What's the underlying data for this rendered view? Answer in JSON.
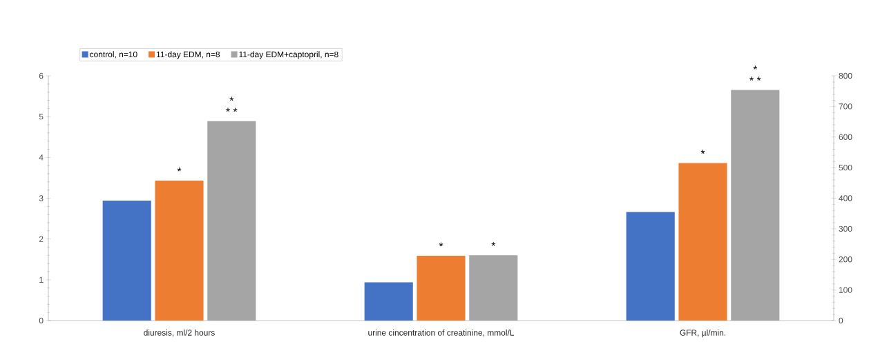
{
  "chart_data": {
    "type": "bar",
    "categories": [
      "diuresis, ml/2 hours",
      "urine cincentration of creatinine, mmol/L",
      "GFR, µl/min."
    ],
    "series": [
      {
        "name": "control, n=10",
        "color": "#4472c4",
        "values": [
          2.94,
          0.94,
          null
        ]
      },
      {
        "name": "11-day EDM, n=8",
        "color": "#ed7d31",
        "values": [
          3.43,
          1.59,
          null
        ]
      },
      {
        "name": "11-day EDM+captopril, n=8",
        "color": "#a5a5a5",
        "values": [
          4.89,
          1.6,
          null
        ]
      },
      {
        "color": "#4472c4",
        "axis": "y2",
        "values": [
          null,
          null,
          355
        ]
      },
      {
        "color": "#ed7d31",
        "axis": "y2",
        "values": [
          null,
          null,
          515
        ]
      },
      {
        "color": "#a5a5a5",
        "axis": "y2",
        "values": [
          null,
          null,
          754
        ]
      }
    ],
    "ylim": [
      0,
      6
    ],
    "yticks": [
      0,
      1,
      2,
      3,
      4,
      5,
      6
    ],
    "y2lim": [
      0,
      800
    ],
    "y2ticks": [
      0,
      100,
      200,
      300,
      400,
      500,
      600,
      700,
      800
    ],
    "grid": false,
    "legend": "top left",
    "annotations": [
      "*",
      "*",
      "* *",
      "*",
      "*",
      "*",
      "*",
      "* *"
    ]
  }
}
